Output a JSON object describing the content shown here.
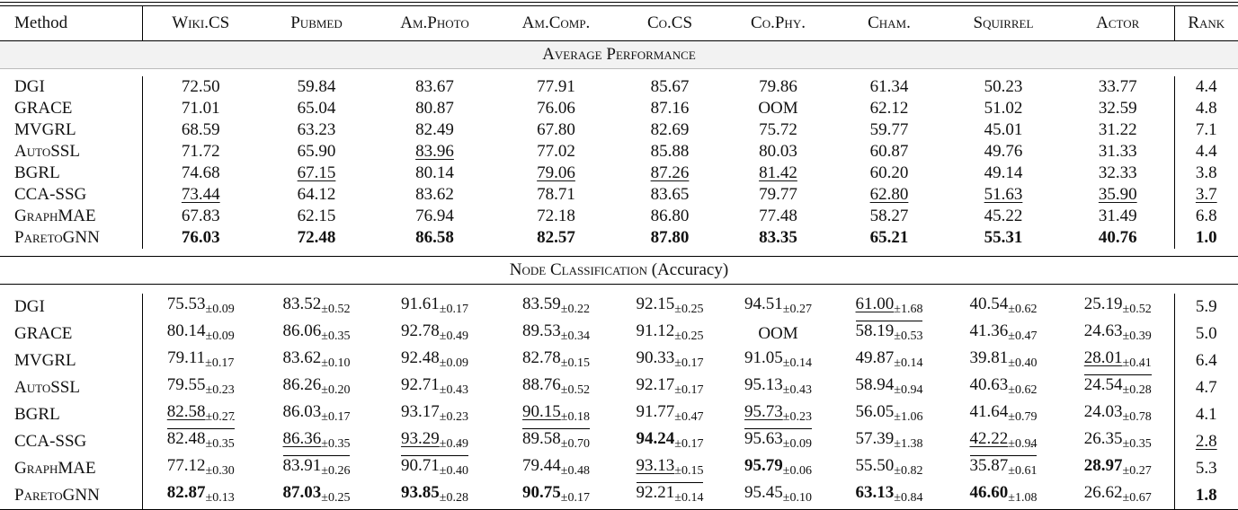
{
  "header": [
    "Method",
    "Wiki.CS",
    "Pubmed",
    "Am.Photo",
    "Am.Comp.",
    "Co.CS",
    "Co.Phy.",
    "Cham.",
    "Squirrel",
    "Actor",
    "Rank"
  ],
  "sections": [
    {
      "title": "Average Performance",
      "rows": [
        {
          "method": "DGI",
          "sc": false,
          "cells": [
            [
              "72.50"
            ],
            [
              "59.84"
            ],
            [
              "83.67"
            ],
            [
              "77.91"
            ],
            [
              "85.67"
            ],
            [
              "79.86"
            ],
            [
              "61.34"
            ],
            [
              "50.23"
            ],
            [
              "33.77"
            ],
            [
              "4.4"
            ]
          ]
        },
        {
          "method": "GRACE",
          "sc": false,
          "cells": [
            [
              "71.01"
            ],
            [
              "65.04"
            ],
            [
              "80.87"
            ],
            [
              "76.06"
            ],
            [
              "87.16"
            ],
            [
              "OOM"
            ],
            [
              "62.12"
            ],
            [
              "51.02"
            ],
            [
              "32.59"
            ],
            [
              "4.8"
            ]
          ]
        },
        {
          "method": "MVGRL",
          "sc": false,
          "cells": [
            [
              "68.59"
            ],
            [
              "63.23"
            ],
            [
              "82.49"
            ],
            [
              "67.80"
            ],
            [
              "82.69"
            ],
            [
              "75.72"
            ],
            [
              "59.77"
            ],
            [
              "45.01"
            ],
            [
              "31.22"
            ],
            [
              "7.1"
            ]
          ]
        },
        {
          "method": "AutoSSL",
          "sc": true,
          "cells": [
            [
              "71.72"
            ],
            [
              "65.90"
            ],
            [
              "83.96",
              "",
              "u"
            ],
            [
              "77.02"
            ],
            [
              "85.88"
            ],
            [
              "80.03"
            ],
            [
              "60.87"
            ],
            [
              "49.76"
            ],
            [
              "31.33"
            ],
            [
              "4.4"
            ]
          ]
        },
        {
          "method": "BGRL",
          "sc": false,
          "cells": [
            [
              "74.68"
            ],
            [
              "67.15",
              "",
              "u"
            ],
            [
              "80.14"
            ],
            [
              "79.06",
              "",
              "u"
            ],
            [
              "87.26",
              "",
              "u"
            ],
            [
              "81.42",
              "",
              "u"
            ],
            [
              "60.20"
            ],
            [
              "49.14"
            ],
            [
              "32.33"
            ],
            [
              "3.8"
            ]
          ]
        },
        {
          "method": "CCA-SSG",
          "sc": false,
          "cells": [
            [
              "73.44",
              "",
              "u"
            ],
            [
              "64.12"
            ],
            [
              "83.62"
            ],
            [
              "78.71"
            ],
            [
              "83.65"
            ],
            [
              "79.77"
            ],
            [
              "62.80",
              "",
              "u"
            ],
            [
              "51.63",
              "",
              "u"
            ],
            [
              "35.90",
              "",
              "u"
            ],
            [
              "3.7",
              "",
              "u"
            ]
          ]
        },
        {
          "method": "GraphMAE",
          "sc": true,
          "cells": [
            [
              "67.83"
            ],
            [
              "62.15"
            ],
            [
              "76.94"
            ],
            [
              "72.18"
            ],
            [
              "86.80"
            ],
            [
              "77.48"
            ],
            [
              "58.27"
            ],
            [
              "45.22"
            ],
            [
              "31.49"
            ],
            [
              "6.8"
            ]
          ]
        },
        {
          "method": "ParetoGNN",
          "sc": true,
          "cells": [
            [
              "76.03",
              "",
              "b"
            ],
            [
              "72.48",
              "",
              "b"
            ],
            [
              "86.58",
              "",
              "b"
            ],
            [
              "82.57",
              "",
              "b"
            ],
            [
              "87.80",
              "",
              "b"
            ],
            [
              "83.35",
              "",
              "b"
            ],
            [
              "65.21",
              "",
              "b"
            ],
            [
              "55.31",
              "",
              "b"
            ],
            [
              "40.76",
              "",
              "b"
            ],
            [
              "1.0",
              "",
              "b"
            ]
          ]
        }
      ]
    },
    {
      "title": "Node Classification",
      "title_suffix": "(Accuracy)",
      "rows": [
        {
          "method": "DGI",
          "sc": false,
          "cells": [
            [
              "75.53",
              "±0.09"
            ],
            [
              "83.52",
              "±0.52"
            ],
            [
              "91.61",
              "±0.17"
            ],
            [
              "83.59",
              "±0.22"
            ],
            [
              "92.15",
              "±0.25"
            ],
            [
              "94.51",
              "±0.27"
            ],
            [
              "61.00",
              "±1.68",
              "u"
            ],
            [
              "40.54",
              "±0.62"
            ],
            [
              "25.19",
              "±0.52"
            ],
            [
              "5.9"
            ]
          ]
        },
        {
          "method": "GRACE",
          "sc": false,
          "cells": [
            [
              "80.14",
              "±0.09"
            ],
            [
              "86.06",
              "±0.35"
            ],
            [
              "92.78",
              "±0.49"
            ],
            [
              "89.53",
              "±0.34"
            ],
            [
              "91.12",
              "±0.25"
            ],
            [
              "OOM"
            ],
            [
              "58.19",
              "±0.53",
              "o"
            ],
            [
              "41.36",
              "±0.47"
            ],
            [
              "24.63",
              "±0.39"
            ],
            [
              "5.0"
            ]
          ]
        },
        {
          "method": "MVGRL",
          "sc": false,
          "cells": [
            [
              "79.11",
              "±0.17"
            ],
            [
              "83.62",
              "±0.10"
            ],
            [
              "92.48",
              "±0.09"
            ],
            [
              "82.78",
              "±0.15"
            ],
            [
              "90.33",
              "±0.17"
            ],
            [
              "91.05",
              "±0.14"
            ],
            [
              "49.87",
              "±0.14"
            ],
            [
              "39.81",
              "±0.40"
            ],
            [
              "28.01",
              "±0.41",
              "u"
            ],
            [
              "6.4"
            ]
          ]
        },
        {
          "method": "AutoSSL",
          "sc": true,
          "cells": [
            [
              "79.55",
              "±0.23"
            ],
            [
              "86.26",
              "±0.20"
            ],
            [
              "92.71",
              "±0.43"
            ],
            [
              "88.76",
              "±0.52"
            ],
            [
              "92.17",
              "±0.17"
            ],
            [
              "95.13",
              "±0.43"
            ],
            [
              "58.94",
              "±0.94"
            ],
            [
              "40.63",
              "±0.62"
            ],
            [
              "24.54",
              "±0.28",
              "o"
            ],
            [
              "4.7"
            ]
          ]
        },
        {
          "method": "BGRL",
          "sc": false,
          "cells": [
            [
              "82.58",
              "±0.27",
              "u"
            ],
            [
              "86.03",
              "±0.17"
            ],
            [
              "93.17",
              "±0.23"
            ],
            [
              "90.15",
              "±0.18",
              "u"
            ],
            [
              "91.77",
              "±0.47"
            ],
            [
              "95.73",
              "±0.23",
              "u"
            ],
            [
              "56.05",
              "±1.06"
            ],
            [
              "41.64",
              "±0.79"
            ],
            [
              "24.03",
              "±0.78"
            ],
            [
              "4.1"
            ]
          ]
        },
        {
          "method": "CCA-SSG",
          "sc": false,
          "cells": [
            [
              "82.48",
              "±0.35",
              "o"
            ],
            [
              "86.36",
              "±0.35",
              "u"
            ],
            [
              "93.29",
              "±0.49",
              "u"
            ],
            [
              "89.58",
              "±0.70",
              "o"
            ],
            [
              "94.24",
              "±0.17",
              "b"
            ],
            [
              "95.63",
              "±0.09",
              "o"
            ],
            [
              "57.39",
              "±1.38"
            ],
            [
              "42.22",
              "±0.94",
              "u"
            ],
            [
              "26.35",
              "±0.35"
            ],
            [
              "2.8",
              "",
              "u"
            ]
          ]
        },
        {
          "method": "GraphMAE",
          "sc": true,
          "cells": [
            [
              "77.12",
              "±0.30"
            ],
            [
              "83.91",
              "±0.26",
              "o"
            ],
            [
              "90.71",
              "±0.40",
              "o"
            ],
            [
              "79.44",
              "±0.48"
            ],
            [
              "93.13",
              "±0.15",
              "u"
            ],
            [
              "95.79",
              "±0.06",
              "b"
            ],
            [
              "55.50",
              "±0.82"
            ],
            [
              "35.87",
              "±0.61",
              "o"
            ],
            [
              "28.97",
              "±0.27",
              "b"
            ],
            [
              "5.3"
            ]
          ]
        },
        {
          "method": "ParetoGNN",
          "sc": true,
          "cells": [
            [
              "82.87",
              "±0.13",
              "b"
            ],
            [
              "87.03",
              "±0.25",
              "b"
            ],
            [
              "93.85",
              "±0.28",
              "b"
            ],
            [
              "90.75",
              "±0.17",
              "b"
            ],
            [
              "92.21",
              "±0.14",
              "o"
            ],
            [
              "95.45",
              "±0.10"
            ],
            [
              "63.13",
              "±0.84",
              "b"
            ],
            [
              "46.60",
              "±1.08",
              "b"
            ],
            [
              "26.62",
              "±0.67"
            ],
            [
              "1.8",
              "",
              "b"
            ]
          ]
        }
      ]
    }
  ]
}
